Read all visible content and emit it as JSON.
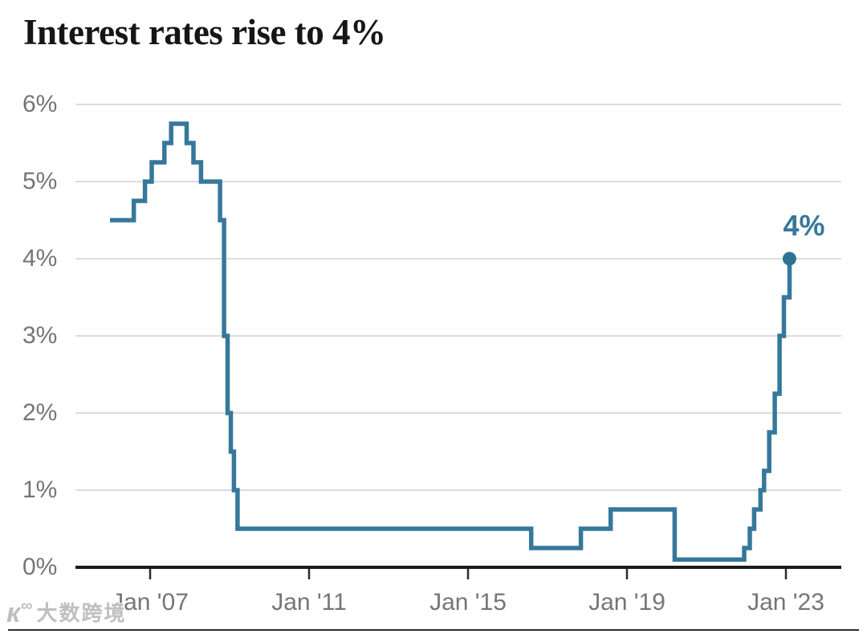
{
  "title": "Interest rates rise to 4%",
  "chart_data": {
    "type": "line",
    "subtype": "step-after",
    "title": "Interest rates rise to 4%",
    "series_name": "Interest rate",
    "x_unit": "year",
    "y_unit": "percent",
    "points": [
      [
        2005.99,
        4.5
      ],
      [
        2006.59,
        4.75
      ],
      [
        2006.87,
        5.0
      ],
      [
        2007.04,
        5.25
      ],
      [
        2007.36,
        5.5
      ],
      [
        2007.53,
        5.75
      ],
      [
        2007.92,
        5.5
      ],
      [
        2008.09,
        5.25
      ],
      [
        2008.28,
        5.0
      ],
      [
        2008.76,
        4.5
      ],
      [
        2008.86,
        3.0
      ],
      [
        2008.95,
        2.0
      ],
      [
        2009.03,
        1.5
      ],
      [
        2009.11,
        1.0
      ],
      [
        2009.2,
        0.5
      ],
      [
        2016.59,
        0.25
      ],
      [
        2017.84,
        0.5
      ],
      [
        2018.59,
        0.75
      ],
      [
        2020.2,
        0.1
      ],
      [
        2021.95,
        0.25
      ],
      [
        2022.09,
        0.5
      ],
      [
        2022.2,
        0.75
      ],
      [
        2022.36,
        1.0
      ],
      [
        2022.45,
        1.25
      ],
      [
        2022.58,
        1.75
      ],
      [
        2022.72,
        2.25
      ],
      [
        2022.84,
        3.0
      ],
      [
        2022.95,
        3.5
      ],
      [
        2023.09,
        4.0
      ]
    ],
    "end_label": "4%",
    "end_value": 4.0,
    "x_axis": {
      "range": [
        2005.1,
        2024.4
      ],
      "ticks": [
        {
          "label": "Jan '07",
          "year": 2007
        },
        {
          "label": "Jan '11",
          "year": 2011
        },
        {
          "label": "Jan '15",
          "year": 2015
        },
        {
          "label": "Jan '19",
          "year": 2019
        },
        {
          "label": "Jan '23",
          "year": 2023
        }
      ]
    },
    "y_axis": {
      "range": [
        0,
        6.2
      ],
      "ticks": [
        {
          "label": "6%",
          "value": 6
        },
        {
          "label": "5%",
          "value": 5
        },
        {
          "label": "4%",
          "value": 4
        },
        {
          "label": "3%",
          "value": 3
        },
        {
          "label": "2%",
          "value": 2
        },
        {
          "label": "1%",
          "value": 1
        },
        {
          "label": "0%",
          "value": 0
        }
      ]
    },
    "grid": true,
    "legend": "none",
    "colors": {
      "line": "#36789b",
      "end_dot": "#2f7293",
      "end_label": "#36789b",
      "grid": "#dcdcdc",
      "axis": "#1b1b1b",
      "tick": "#2b2b2b",
      "axis_labels": "#757575",
      "title": "#161616"
    }
  },
  "watermark": {
    "logo_main": "к",
    "logo_sup": "∞",
    "text": "大数跨境"
  }
}
